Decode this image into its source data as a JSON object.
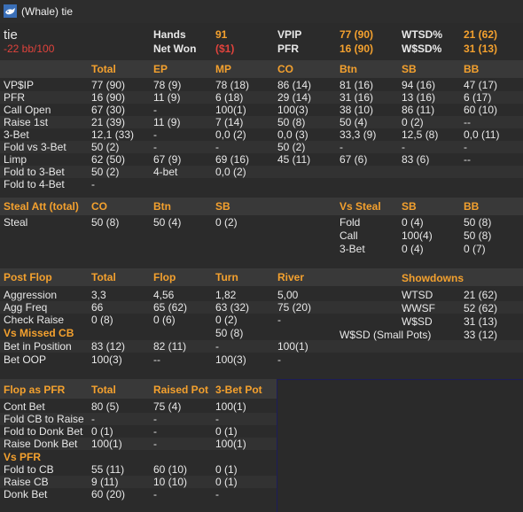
{
  "window": {
    "title": "(Whale) tie",
    "icon": "whale-app-icon"
  },
  "header": {
    "player": "tie",
    "winrate": "-22 bb/100",
    "hands_label": "Hands",
    "hands_value": "91",
    "netwon_label": "Net Won",
    "netwon_value": "($1)",
    "vpip_label": "VPIP",
    "vpip_value": "77 (90)",
    "pfr_label": "PFR",
    "pfr_value": "16 (90)",
    "wtsd_label": "WTSD%",
    "wtsd_value": "21 (62)",
    "wssd_label": "W$SD%",
    "wssd_value": "31 (13)"
  },
  "positions": {
    "headers": [
      "Total",
      "EP",
      "MP",
      "CO",
      "Btn",
      "SB",
      "BB"
    ],
    "rows": [
      {
        "label": "VP$IP",
        "cells": [
          "77 (90)",
          "78 (9)",
          "78 (18)",
          "86 (14)",
          "81 (16)",
          "94 (16)",
          "47 (17)"
        ]
      },
      {
        "label": "PFR",
        "cells": [
          "16 (90)",
          "11 (9)",
          "6 (18)",
          "29 (14)",
          "31 (16)",
          "13 (16)",
          "6 (17)"
        ]
      },
      {
        "label": "Call Open",
        "cells": [
          "67 (30)",
          "-",
          "100(1)",
          "100(3)",
          "38 (10)",
          "86 (11)",
          "60 (10)"
        ]
      },
      {
        "label": "Raise 1st",
        "cells": [
          "21 (39)",
          "11 (9)",
          "7 (14)",
          "50 (8)",
          "50 (4)",
          "0 (2)",
          "--"
        ]
      },
      {
        "label": "3-Bet",
        "cells": [
          "12,1 (33)",
          "-",
          "0,0 (2)",
          "0,0 (3)",
          "33,3 (9)",
          "12,5 (8)",
          "0,0 (11)"
        ]
      },
      {
        "label": "Fold vs 3-Bet",
        "cells": [
          "50 (2)",
          "-",
          "-",
          "50 (2)",
          "-",
          "-",
          "-"
        ]
      },
      {
        "label": "Limp",
        "cells": [
          "62 (50)",
          "67 (9)",
          "69 (16)",
          "45 (11)",
          "67 (6)",
          "83 (6)",
          "--"
        ]
      },
      {
        "label": "Fold to 3-Bet",
        "cells": [
          "50 (2)",
          "4-bet",
          "0,0 (2)",
          "",
          "",
          "",
          ""
        ]
      },
      {
        "label": "Fold to 4-Bet",
        "cells": [
          "-",
          "",
          "",
          "",
          "",
          "",
          ""
        ]
      }
    ]
  },
  "steal": {
    "title": "Steal Att (total)",
    "headers": [
      "CO",
      "Btn",
      "SB"
    ],
    "row_label": "Steal",
    "row_cells": [
      "50 (8)",
      "50 (4)",
      "0 (2)"
    ],
    "vs_title": "Vs Steal",
    "vs_headers": [
      "SB",
      "BB"
    ],
    "vs_rows": [
      {
        "label": "Fold",
        "cells": [
          "0 (4)",
          "50 (8)"
        ]
      },
      {
        "label": "Call",
        "cells": [
          "100(4)",
          "50 (8)"
        ]
      },
      {
        "label": "3-Bet",
        "cells": [
          "0 (4)",
          "0 (7)"
        ]
      }
    ]
  },
  "postflop": {
    "title": "Post Flop",
    "headers": [
      "Total",
      "Flop",
      "Turn",
      "River"
    ],
    "rows": [
      {
        "label": "Aggression",
        "cells": [
          "3,3",
          "4,56",
          "1,82",
          "5,00"
        ]
      },
      {
        "label": "Agg Freq",
        "cells": [
          "66",
          "65 (62)",
          "63 (32)",
          "75 (20)"
        ]
      },
      {
        "label": "Check Raise",
        "cells": [
          "0 (8)",
          "0 (6)",
          "0 (2)",
          "-"
        ]
      }
    ],
    "missed_title": "Vs Missed CB",
    "missed_value": "50 (8)",
    "rows2": [
      {
        "label": "Bet in Position",
        "cells": [
          "83 (12)",
          "82 (11)",
          "-",
          "100(1)"
        ]
      },
      {
        "label": "Bet OOP",
        "cells": [
          "100(3)",
          "--",
          "100(3)",
          "-"
        ]
      }
    ],
    "showdowns_title": "Showdowns",
    "showdowns": [
      {
        "label": "WTSD",
        "value": "21 (62)"
      },
      {
        "label": "WWSF",
        "value": "52 (62)"
      },
      {
        "label": "W$SD",
        "value": "31 (13)"
      },
      {
        "label": "W$SD (Small Pots)",
        "value": "33 (12)"
      }
    ]
  },
  "flop_pfr": {
    "title": "Flop as PFR",
    "headers": [
      "Total",
      "Raised Pot",
      "3-Bet Pot"
    ],
    "rows": [
      {
        "label": "Cont Bet",
        "cells": [
          "80 (5)",
          "75 (4)",
          "100(1)"
        ]
      },
      {
        "label": "Fold CB to Raise",
        "cells": [
          "-",
          "-",
          "-"
        ]
      },
      {
        "label": "Fold to Donk Bet",
        "cells": [
          "0 (1)",
          "-",
          "0 (1)"
        ]
      },
      {
        "label": "Raise Donk Bet",
        "cells": [
          "100(1)",
          "-",
          "100(1)"
        ]
      }
    ],
    "vs_title": "Vs PFR",
    "vs_rows": [
      {
        "label": "Fold to CB",
        "cells": [
          "55 (11)",
          "60 (10)",
          "0 (1)"
        ]
      },
      {
        "label": "Raise CB",
        "cells": [
          "9 (11)",
          "10 (10)",
          "0 (1)"
        ]
      },
      {
        "label": "Donk Bet",
        "cells": [
          "60 (20)",
          "-",
          "-"
        ]
      }
    ]
  },
  "colors": {
    "accent": "#f4a12e",
    "negative": "#e0433c",
    "background": "#2b2b2b",
    "band": "#393939",
    "row_alt": "#333333"
  }
}
